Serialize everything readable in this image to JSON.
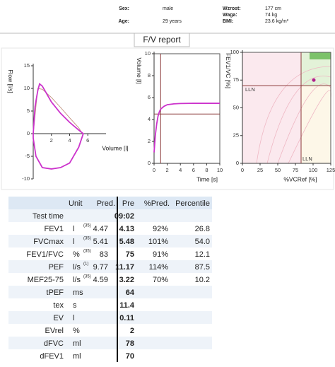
{
  "header": {
    "sex_label": "Sex:",
    "sex": "male",
    "age_label": "Age:",
    "age": "29 years",
    "height_label": "Wzrost:",
    "height": "177 cm",
    "weight_label": "Waga:",
    "weight": "74 kg",
    "bmi_label": "BMI:",
    "bmi": "23.6 kg/m²"
  },
  "report_title": "F/V report",
  "chart_data": [
    {
      "type": "line",
      "y_label": "Flow [l/s]",
      "x_label": "Volume [l]",
      "xlim": [
        0,
        8
      ],
      "ylim": [
        -10,
        15
      ],
      "xticks": [
        2,
        4,
        6
      ],
      "yticks": [
        -10,
        -5,
        0,
        5,
        10,
        15
      ],
      "series": [
        {
          "color": "#c0907e",
          "x": [
            0,
            0.5,
            1,
            2,
            3,
            4,
            5,
            5.4
          ],
          "values": [
            0,
            10,
            9.8,
            8,
            5.8,
            3.5,
            1.3,
            0
          ]
        },
        {
          "color": "#cc33cc",
          "x": [
            0,
            0.2,
            0.5,
            0.7,
            1,
            2,
            3,
            4,
            5,
            5.5,
            5,
            4,
            3,
            2,
            1,
            0.3,
            0,
            0
          ],
          "values": [
            0,
            6,
            9.5,
            11,
            10.5,
            7,
            4.5,
            2.5,
            0.8,
            0,
            -3,
            -6.5,
            -7.5,
            -7.8,
            -7.5,
            -5,
            -1,
            0
          ]
        }
      ]
    },
    {
      "type": "line",
      "y_label": "Volume [l]",
      "x_label": "Time [s]",
      "xlim": [
        0,
        10
      ],
      "ylim": [
        0,
        10
      ],
      "xticks": [
        0,
        2,
        4,
        6,
        8,
        10
      ],
      "yticks": [
        0,
        2,
        4,
        6,
        8,
        10
      ],
      "vline": 1,
      "hline": 4.5,
      "series": [
        {
          "color": "#cc33cc",
          "x": [
            0,
            0.1,
            0.2,
            0.4,
            0.6,
            0.8,
            1,
            1.5,
            2,
            3,
            4,
            6,
            8,
            10
          ],
          "values": [
            1,
            1.8,
            2.6,
            3.6,
            4.3,
            4.7,
            4.95,
            5.2,
            5.35,
            5.43,
            5.46,
            5.48,
            5.48,
            5.48
          ]
        }
      ]
    },
    {
      "type": "scatter",
      "y_label": "FEV1/VC [%]",
      "x_label": "%VCRef [%]",
      "xlim": [
        0,
        125
      ],
      "ylim": [
        0,
        100
      ],
      "xticks": [
        0,
        25,
        50,
        75,
        100,
        125
      ],
      "yticks": [
        0,
        25,
        50,
        75,
        100
      ],
      "lln_x": 83,
      "lln_y": 70,
      "annotations": [
        "LLN",
        "LLN"
      ],
      "series": [
        {
          "color": "#b0208c",
          "x": [
            101
          ],
          "values": [
            75
          ]
        }
      ]
    }
  ],
  "table": {
    "header": [
      "Unit",
      "Pred.",
      "Pre",
      "%Pred.",
      "Percentile"
    ],
    "rows": [
      [
        "Test time",
        null,
        null,
        null,
        "09:02",
        null,
        null
      ],
      [
        "FEV1",
        "l",
        "(35)",
        "4.47",
        "4.13",
        "92%",
        "26.8"
      ],
      [
        "FVCmax",
        "l",
        "(35)",
        "5.41",
        "5.48",
        "101%",
        "54.0"
      ],
      [
        "FEV1/FVC",
        "%",
        "(35)",
        "83",
        "75",
        "91%",
        "12.1"
      ],
      [
        "PEF",
        "l/s",
        "(1)",
        "9.77",
        "11.17",
        "114%",
        "87.5"
      ],
      [
        "MEF25-75",
        "l/s",
        "(35)",
        "4.59",
        "3.22",
        "70%",
        "10.2"
      ],
      [
        "tPEF",
        "ms",
        null,
        null,
        "64",
        null,
        null
      ],
      [
        "tex",
        "s",
        null,
        null,
        "11.4",
        null,
        null
      ],
      [
        "EV",
        "l",
        null,
        null,
        "0.11",
        null,
        null
      ],
      [
        "EVrel",
        "%",
        null,
        null,
        "2",
        null,
        null
      ],
      [
        "dFVC",
        "ml",
        null,
        null,
        "78",
        null,
        null
      ],
      [
        "dFEV1",
        "ml",
        null,
        null,
        "70",
        null,
        null
      ]
    ]
  }
}
